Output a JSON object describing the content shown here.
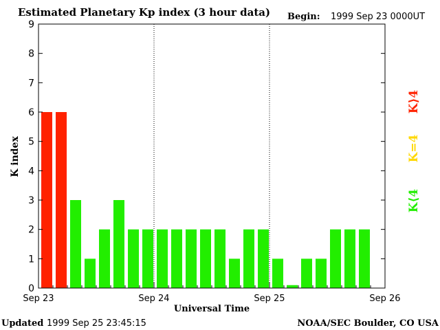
{
  "chart_data": {
    "type": "bar",
    "title": "Estimated Planetary Kp index (3 hour data)",
    "begin_label": "Begin:",
    "begin_value": "1999 Sep 23 0000UT",
    "ylabel": "K index",
    "xlabel": "Universal Time",
    "ylim": [
      0,
      9
    ],
    "yticks": [
      "0",
      "1",
      "2",
      "3",
      "4",
      "5",
      "6",
      "7",
      "8",
      "9"
    ],
    "day_labels": [
      "Sep 23",
      "Sep 24",
      "Sep 25",
      "Sep 26"
    ],
    "values": [
      6,
      6,
      3,
      1,
      2,
      3,
      2,
      2,
      2,
      2,
      2,
      2,
      2,
      1,
      2,
      2,
      1,
      0.1,
      1,
      1,
      2,
      2,
      2
    ],
    "legend": {
      "high": "K⟩4",
      "equal": "K=4",
      "low": "K⟨4"
    },
    "colors": {
      "high": "#ff2200",
      "equal": "#ffd800",
      "low": "#22ee00",
      "axis": "#000000"
    }
  },
  "footer": {
    "updated_label": "Updated",
    "updated_value": "1999 Sep 25 23:45:15",
    "source": "NOAA/SEC Boulder, CO USA"
  }
}
